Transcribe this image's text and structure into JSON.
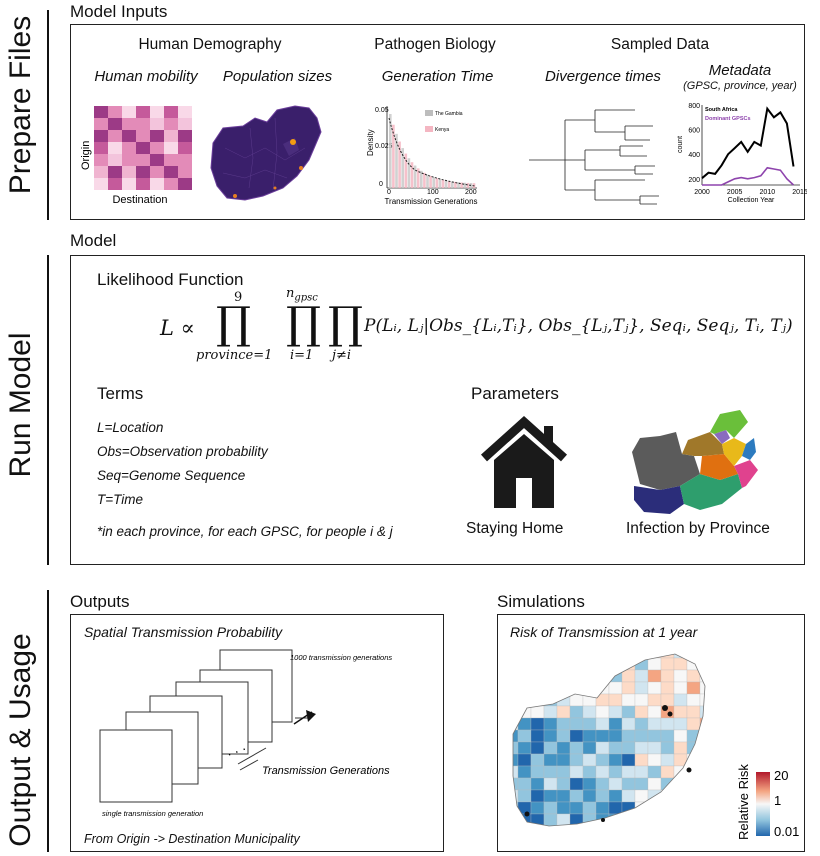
{
  "side_labels": {
    "prepare": "Prepare Files",
    "run": "Run Model",
    "output": "Output & Usage"
  },
  "model_inputs": {
    "title": "Model Inputs",
    "groups": {
      "human_demography": "Human Demography",
      "pathogen_biology": "Pathogen Biology",
      "sampled_data": "Sampled Data"
    },
    "items": {
      "human_mobility": "Human mobility",
      "population_sizes": "Population sizes",
      "generation_time": "Generation Time",
      "divergence_times": "Divergence times",
      "metadata": "Metadata",
      "metadata_sub": "(GPSC, province, year)"
    },
    "mobility_matrix": {
      "ylabel": "Origin",
      "xlabel": "Destination"
    },
    "generation_plot": {
      "ylabel": "Density",
      "xlabel": "Transmission Generations",
      "legend": [
        "The Gambia",
        "Kenya"
      ],
      "yticks": [
        "0.05",
        "0.025",
        "0"
      ],
      "xticks": [
        "0",
        "100",
        "200"
      ]
    }
  },
  "chart_data": {
    "type": "line",
    "title": "",
    "xlabel": "Collection Year",
    "ylabel": "count",
    "xlim": [
      2000,
      2015
    ],
    "ylim": [
      150,
      800
    ],
    "xticks": [
      "2000",
      "2005",
      "2010",
      "2015"
    ],
    "yticks": [
      "200",
      "400",
      "600",
      "800"
    ],
    "legend_position": "top-left",
    "series": [
      {
        "name": "South Africa",
        "color": "#000000",
        "x": [
          2000,
          2001,
          2002,
          2003,
          2004,
          2005,
          2006,
          2007,
          2008,
          2009,
          2010,
          2011,
          2012,
          2013,
          2014
        ],
        "y": [
          205,
          250,
          240,
          310,
          400,
          450,
          500,
          420,
          500,
          470,
          770,
          700,
          740,
          650,
          300
        ]
      },
      {
        "name": "Dominant GPSCs",
        "color": "#8e44ad",
        "x": [
          2000,
          2001,
          2002,
          2003,
          2004,
          2005,
          2006,
          2007,
          2008,
          2009,
          2010,
          2011,
          2012,
          2013,
          2014
        ],
        "y": [
          110,
          120,
          125,
          150,
          175,
          200,
          210,
          200,
          210,
          225,
          290,
          280,
          270,
          200,
          120
        ]
      }
    ]
  },
  "model": {
    "title": "Model",
    "likelihood_title": "Likelihood Function",
    "equation": {
      "lhs": "L ∝",
      "prod1_upper": "9",
      "prod1_lower": "province=1",
      "prod2_upper": "n",
      "prod2_upper_sub": "gpsc",
      "prod2_lower": "i=1",
      "prod3_lower": "j≠i",
      "body": "P(Lᵢ, Lⱼ|Obs_{Lᵢ,Tᵢ}, Obs_{Lⱼ,Tⱼ}, Seqᵢ, Seqⱼ, Tᵢ, Tⱼ)"
    },
    "terms_title": "Terms",
    "terms": [
      "L=Location",
      "Obs=Observation probability",
      "Seq=Genome Sequence",
      "T=Time"
    ],
    "footnote": "*in each province, for each GPSC, for people i & j",
    "parameters_title": "Parameters",
    "param_staying_home": "Staying Home",
    "param_infection": "Infection by Province"
  },
  "outputs": {
    "title": "Outputs",
    "box_title": "Spatial Transmission Probability",
    "top_label": "1000 transmission generations",
    "mid_label": "Transmission Generations",
    "bottom_label": "single transmission generation",
    "footer": "From Origin -> Destination Municipality"
  },
  "simulations": {
    "title": "Simulations",
    "box_title": "Risk of Transmission at 1 year",
    "legend_title": "Relative Risk",
    "legend_ticks": [
      "20",
      "1",
      "0.01"
    ]
  },
  "colors": {
    "outline": "#222222",
    "magenta": "#c13c8a",
    "purple_map": "#3a1f6b",
    "risk_high": "#b2182b",
    "risk_low": "#2166ac"
  }
}
